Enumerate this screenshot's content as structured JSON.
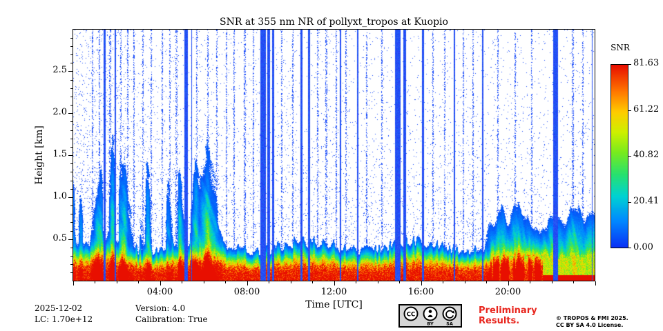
{
  "chart_data": {
    "type": "heatmap",
    "title": "SNR at 355 nm NR of pollyxt_tropos at Kuopio",
    "xlabel": "Time [UTC]",
    "ylabel": "Height [km]",
    "x_range_hours": [
      0,
      24
    ],
    "x_ticks": [
      {
        "h": 4,
        "label": "04:00"
      },
      {
        "h": 8,
        "label": "08:00"
      },
      {
        "h": 12,
        "label": "12:00"
      },
      {
        "h": 16,
        "label": "16:00"
      },
      {
        "h": 20,
        "label": "20:00"
      }
    ],
    "y_range_km": [
      0,
      3.0
    ],
    "y_ticks": [
      {
        "km": 0.5,
        "label": "0.5"
      },
      {
        "km": 1.0,
        "label": "1.0"
      },
      {
        "km": 1.5,
        "label": "1.5"
      },
      {
        "km": 2.0,
        "label": "2.0"
      },
      {
        "km": 2.5,
        "label": "2.5"
      }
    ],
    "colorbar": {
      "title": "SNR",
      "vmin": 0,
      "vmax": 81.63,
      "ticks": [
        {
          "v": 0,
          "label": "0.00"
        },
        {
          "v": 20.41,
          "label": "20.41"
        },
        {
          "v": 40.82,
          "label": "40.82"
        },
        {
          "v": 61.22,
          "label": "61.22"
        },
        {
          "v": 81.63,
          "label": "81.63"
        }
      ],
      "colormap": "jet",
      "stops": [
        [
          0.0,
          [
            10,
            50,
            245
          ]
        ],
        [
          0.15,
          [
            0,
            140,
            255
          ]
        ],
        [
          0.28,
          [
            0,
            210,
            210
          ]
        ],
        [
          0.4,
          [
            40,
            225,
            110
          ]
        ],
        [
          0.52,
          [
            120,
            235,
            30
          ]
        ],
        [
          0.63,
          [
            205,
            240,
            0
          ]
        ],
        [
          0.74,
          [
            255,
            205,
            0
          ]
        ],
        [
          0.86,
          [
            255,
            115,
            0
          ]
        ],
        [
          1.0,
          [
            232,
            15,
            0
          ]
        ]
      ]
    },
    "features": {
      "surface_layer": "High SNR (60-82, red) layer from the surface up to ~0.25-0.35 km across the whole day, topped by a green (20-45) then blue (<10) fringe up to ~0.5 km",
      "morning_plumes": "Patchy green vertical streaks (SNR 15-45) reaching up to ~1.1 km between 00:00 and ~06:45",
      "evening_layer": "Green-yellow mixed layer (SNR 20-50) up to ~0.6-0.8 km from ~19:00 to 24:00; the red surface band becomes patchy/yellow after ~19:15",
      "background": "White with sparse blue speckle noise whose density decreases with height",
      "blue_column_stripes": [
        [
          1.45,
          0.05
        ],
        [
          1.95,
          0.03
        ],
        [
          5.2,
          0.09
        ],
        [
          5.45,
          0.03
        ],
        [
          8.75,
          0.12
        ],
        [
          9.0,
          0.07
        ],
        [
          9.2,
          0.06
        ],
        [
          10.5,
          0.05
        ],
        [
          10.85,
          0.04
        ],
        [
          12.3,
          0.02
        ],
        [
          13.1,
          0.03
        ],
        [
          14.95,
          0.13
        ],
        [
          15.25,
          0.06
        ],
        [
          16.1,
          0.05
        ],
        [
          17.55,
          0.02
        ],
        [
          18.85,
          0.03
        ],
        [
          22.2,
          0.1
        ],
        [
          23.9,
          0.02
        ]
      ],
      "thin_noise_columns_hours": [
        0.9,
        1.2,
        1.7,
        2.2,
        2.5,
        2.8,
        3.2,
        3.6,
        4.1,
        4.45,
        4.75,
        5.7,
        6.2,
        6.6,
        7.05,
        7.4,
        7.9,
        8.3,
        9.6,
        10.1,
        11.25,
        11.65,
        12.1,
        12.55,
        13.5,
        14.2,
        16.55,
        17.1,
        17.95,
        18.4,
        19.55,
        20.35,
        21.1,
        23.0,
        23.45
      ]
    }
  },
  "footer": {
    "date": "2025-12-02",
    "lc": "LC: 1.70e+12",
    "version": "Version: 4.0",
    "calibration": "Calibration: True",
    "preliminary": "Preliminary Results.",
    "copyright1": "© TROPOS & FMI 2025.",
    "copyright2": "CC BY SA 4.0 License.",
    "badge_labels": {
      "cc": "CC",
      "by": "BY",
      "sa": "SA"
    }
  },
  "colors": {
    "preliminary_red": "#e8251d",
    "speckle_blue": "#194bfa"
  }
}
